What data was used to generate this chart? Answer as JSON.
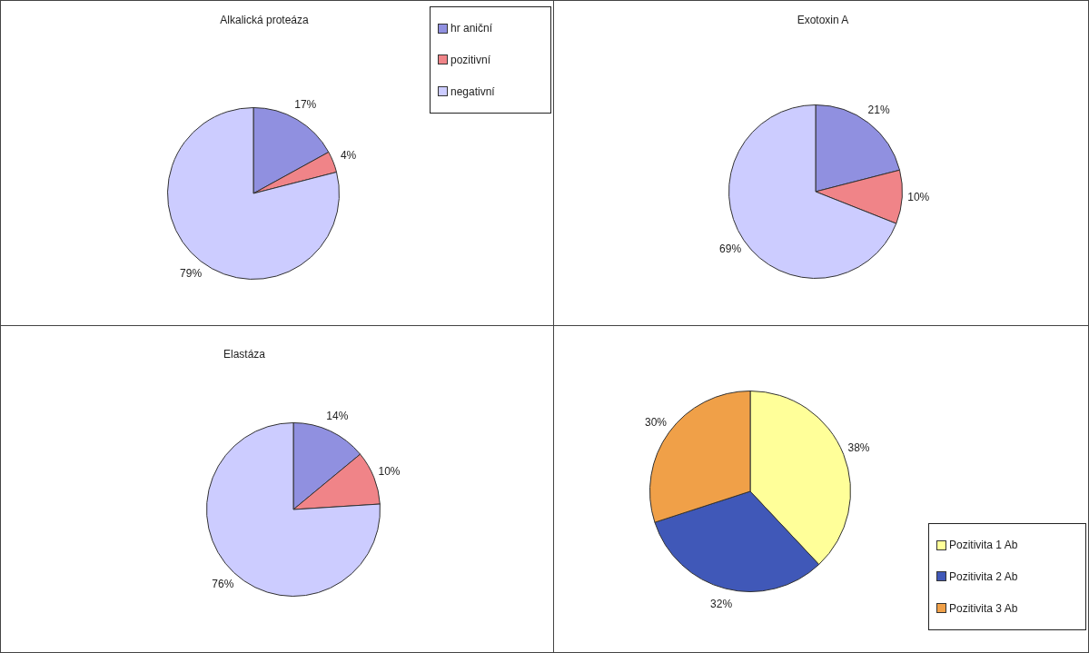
{
  "chart_data": [
    {
      "type": "pie",
      "title": "Alkalická proteáza",
      "categories": [
        "hr aniční",
        "pozitivní",
        "negativní"
      ],
      "values": [
        17,
        4,
        79
      ],
      "colors": [
        "#9090e0",
        "#f08488",
        "#ccccff"
      ],
      "value_labels": [
        "17%",
        "4%",
        "79%"
      ],
      "legend": "top right"
    },
    {
      "type": "pie",
      "title": "Exotoxin A",
      "categories": [
        null,
        null,
        null
      ],
      "values": [
        21,
        10,
        69
      ],
      "colors": [
        "#9090e0",
        "#f08488",
        "#ccccff"
      ],
      "value_labels": [
        "21%",
        "10%",
        "69%"
      ]
    },
    {
      "type": "pie",
      "title": "Elastáza",
      "categories": [
        null,
        null,
        null
      ],
      "values": [
        14,
        10,
        76
      ],
      "colors": [
        "#9090e0",
        "#f08488",
        "#ccccff"
      ],
      "value_labels": [
        "14%",
        "10%",
        "76%"
      ]
    },
    {
      "type": "pie",
      "categories": [
        "Pozitivita 1 Ab",
        "Pozitivita 2 Ab",
        "Pozitivita 3 Ab"
      ],
      "values": [
        38,
        32,
        30
      ],
      "colors": [
        "#ffff99",
        "#4058b8",
        "#f0a048"
      ],
      "value_labels": [
        "38%",
        "32%",
        "30%"
      ],
      "legend": "bottom right"
    }
  ]
}
